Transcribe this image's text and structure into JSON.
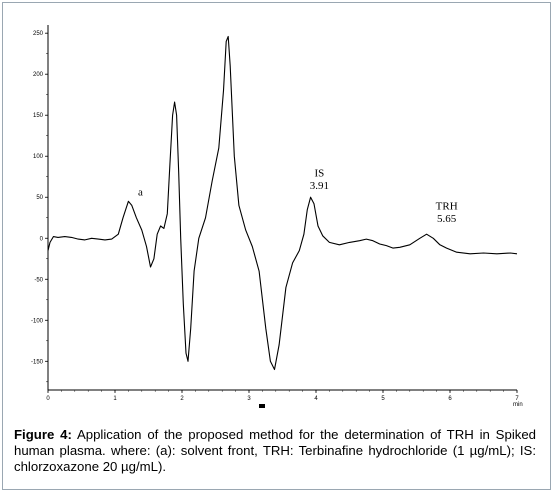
{
  "caption": {
    "label": "Figure 4:",
    "text": "Application of the proposed method for the determination of TRH in Spiked human plasma. where: (a): solvent front, TRH: Terbinafine hydrochloride (1 µg/mL); IS: chlorzoxazone 20 µg/mL)."
  },
  "chart_data": {
    "type": "line",
    "title": "",
    "xlabel": "min",
    "ylabel": "",
    "xlim": [
      0,
      7
    ],
    "ylim": [
      -185,
      260
    ],
    "x_ticks": [
      "0",
      "1",
      "2",
      "3",
      "4",
      "5",
      "6",
      "7"
    ],
    "y_ticks": [
      "250",
      "200",
      "150",
      "100",
      "50",
      "0",
      "-50",
      "-100",
      "-150"
    ],
    "grid": false,
    "series": [
      {
        "name": "",
        "color": "#000000",
        "points": [
          [
            0.0,
            -15
          ],
          [
            0.03,
            -5
          ],
          [
            0.08,
            2
          ],
          [
            0.15,
            1
          ],
          [
            0.25,
            2
          ],
          [
            0.35,
            1
          ],
          [
            0.45,
            -1
          ],
          [
            0.55,
            -2
          ],
          [
            0.65,
            0
          ],
          [
            0.75,
            -1
          ],
          [
            0.85,
            -2
          ],
          [
            0.95,
            -1
          ],
          [
            1.05,
            5
          ],
          [
            1.12,
            25
          ],
          [
            1.2,
            45
          ],
          [
            1.25,
            40
          ],
          [
            1.32,
            25
          ],
          [
            1.4,
            10
          ],
          [
            1.47,
            -10
          ],
          [
            1.53,
            -35
          ],
          [
            1.58,
            -25
          ],
          [
            1.63,
            5
          ],
          [
            1.68,
            15
          ],
          [
            1.73,
            12
          ],
          [
            1.78,
            30
          ],
          [
            1.82,
            90
          ],
          [
            1.86,
            150
          ],
          [
            1.89,
            166
          ],
          [
            1.92,
            150
          ],
          [
            1.95,
            80
          ],
          [
            1.98,
            0
          ],
          [
            2.02,
            -80
          ],
          [
            2.06,
            -140
          ],
          [
            2.09,
            -150
          ],
          [
            2.13,
            -110
          ],
          [
            2.18,
            -40
          ],
          [
            2.25,
            0
          ],
          [
            2.35,
            25
          ],
          [
            2.45,
            70
          ],
          [
            2.55,
            110
          ],
          [
            2.62,
            180
          ],
          [
            2.66,
            240
          ],
          [
            2.69,
            246
          ],
          [
            2.72,
            210
          ],
          [
            2.78,
            100
          ],
          [
            2.85,
            40
          ],
          [
            2.95,
            10
          ],
          [
            3.05,
            -10
          ],
          [
            3.15,
            -40
          ],
          [
            3.25,
            -110
          ],
          [
            3.32,
            -150
          ],
          [
            3.38,
            -160
          ],
          [
            3.45,
            -130
          ],
          [
            3.55,
            -60
          ],
          [
            3.65,
            -30
          ],
          [
            3.75,
            -15
          ],
          [
            3.82,
            5
          ],
          [
            3.87,
            35
          ],
          [
            3.92,
            50
          ],
          [
            3.97,
            42
          ],
          [
            4.03,
            15
          ],
          [
            4.1,
            3
          ],
          [
            4.2,
            -5
          ],
          [
            4.35,
            -8
          ],
          [
            4.5,
            -5
          ],
          [
            4.65,
            -3
          ],
          [
            4.75,
            -1
          ],
          [
            4.85,
            -3
          ],
          [
            4.95,
            -7
          ],
          [
            5.05,
            -9
          ],
          [
            5.15,
            -12
          ],
          [
            5.25,
            -11
          ],
          [
            5.4,
            -8
          ],
          [
            5.55,
            0
          ],
          [
            5.65,
            5
          ],
          [
            5.75,
            0
          ],
          [
            5.85,
            -8
          ],
          [
            5.95,
            -12
          ],
          [
            6.1,
            -17
          ],
          [
            6.3,
            -19
          ],
          [
            6.5,
            -18
          ],
          [
            6.7,
            -19
          ],
          [
            6.9,
            -18
          ],
          [
            7.0,
            -19
          ]
        ]
      }
    ],
    "annotations": [
      {
        "text": "a",
        "x": 1.38,
        "y": 52
      },
      {
        "text": "IS",
        "x": 4.05,
        "y": 75
      },
      {
        "text": "3.91",
        "x": 4.05,
        "y": 60
      },
      {
        "text": "TRH",
        "x": 5.95,
        "y": 35
      },
      {
        "text": "5.65",
        "x": 5.95,
        "y": 20
      }
    ]
  }
}
